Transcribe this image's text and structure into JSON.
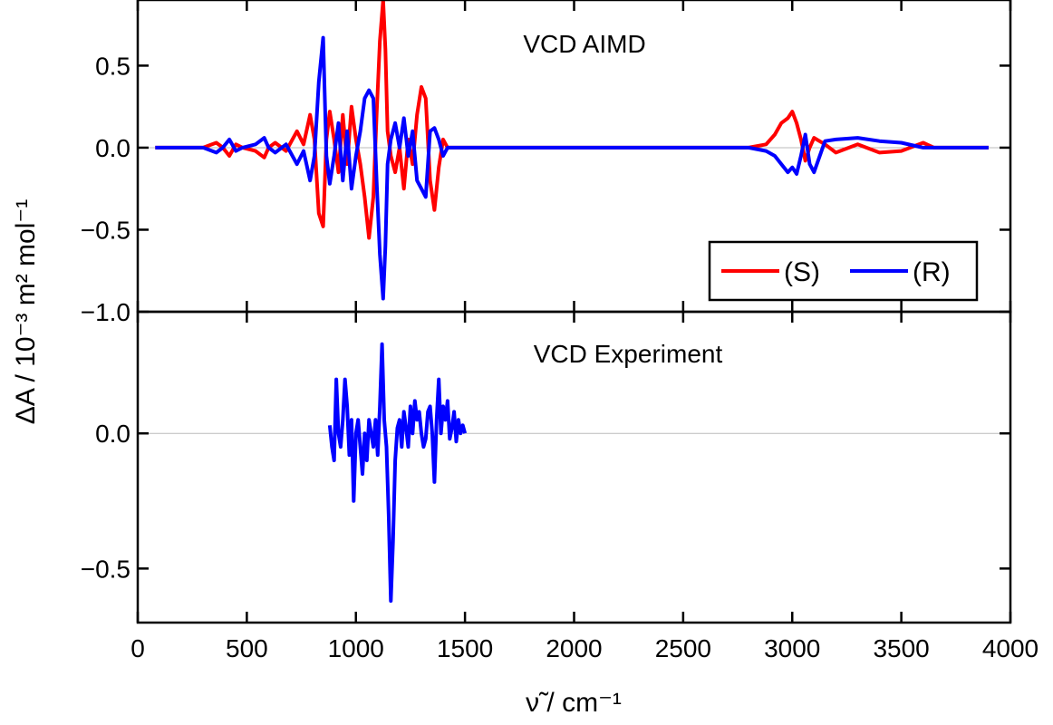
{
  "chart_data": [
    {
      "type": "line",
      "title": "VCD AIMD",
      "xlim": [
        0,
        4000
      ],
      "ylim": [
        -1.0,
        0.9
      ],
      "yticks": [
        -1.0,
        -0.5,
        0.0,
        0.5
      ],
      "ytick_labels": [
        "−1.0",
        "−0.5",
        "0.0",
        "0.5"
      ],
      "legend": {
        "position": "bottom-right",
        "entries": [
          "(S)",
          "(R)"
        ]
      },
      "series": [
        {
          "name": "(S)",
          "color": "#ff0000",
          "x": [
            80,
            300,
            360,
            390,
            420,
            450,
            480,
            540,
            580,
            600,
            630,
            680,
            730,
            760,
            790,
            810,
            830,
            850,
            865,
            880,
            900,
            920,
            940,
            960,
            980,
            1000,
            1020,
            1040,
            1060,
            1080,
            1095,
            1110,
            1125,
            1135,
            1145,
            1160,
            1180,
            1200,
            1220,
            1240,
            1260,
            1280,
            1300,
            1320,
            1340,
            1360,
            1380,
            1400,
            1420,
            1450,
            1480,
            1520,
            1700,
            2000,
            2500,
            2800,
            2880,
            2920,
            2950,
            2980,
            3000,
            3020,
            3040,
            3060,
            3080,
            3100,
            3150,
            3200,
            3300,
            3400,
            3500,
            3600,
            3650,
            3700,
            3900
          ],
          "y": [
            0.0,
            0.0,
            0.03,
            0.0,
            -0.05,
            0.02,
            0.0,
            -0.02,
            -0.06,
            0.0,
            0.03,
            -0.02,
            0.1,
            0.02,
            0.2,
            0.05,
            -0.4,
            -0.48,
            0.05,
            0.22,
            0.05,
            -0.15,
            0.2,
            -0.1,
            0.25,
            0.05,
            -0.1,
            -0.3,
            -0.55,
            -0.3,
            0.2,
            0.65,
            0.9,
            0.6,
            0.1,
            -0.05,
            -0.15,
            0.0,
            -0.25,
            0.05,
            -0.1,
            0.2,
            0.37,
            0.3,
            -0.2,
            -0.38,
            -0.12,
            0.05,
            0.0,
            0.0,
            0.0,
            0.0,
            0.0,
            0.0,
            0.0,
            0.0,
            0.02,
            0.08,
            0.15,
            0.18,
            0.22,
            0.15,
            0.05,
            -0.08,
            0.0,
            0.06,
            0.02,
            -0.03,
            0.02,
            -0.03,
            -0.02,
            0.03,
            0.0,
            0.0,
            0.0
          ]
        },
        {
          "name": "(R)",
          "color": "#0000ff",
          "x": [
            80,
            300,
            360,
            390,
            420,
            450,
            480,
            540,
            580,
            600,
            630,
            680,
            730,
            760,
            790,
            810,
            830,
            850,
            865,
            880,
            900,
            920,
            940,
            960,
            980,
            1000,
            1020,
            1040,
            1060,
            1080,
            1095,
            1110,
            1125,
            1135,
            1145,
            1160,
            1180,
            1200,
            1220,
            1240,
            1260,
            1280,
            1300,
            1320,
            1340,
            1360,
            1380,
            1400,
            1420,
            1450,
            1480,
            1520,
            1700,
            2000,
            2500,
            2800,
            2880,
            2920,
            2950,
            2980,
            3000,
            3020,
            3040,
            3060,
            3080,
            3100,
            3150,
            3200,
            3300,
            3400,
            3500,
            3600,
            3650,
            3700,
            3900
          ],
          "y": [
            0.0,
            0.0,
            -0.03,
            0.0,
            0.05,
            -0.02,
            0.0,
            0.02,
            0.06,
            0.0,
            -0.03,
            0.02,
            -0.1,
            -0.02,
            -0.2,
            -0.05,
            0.4,
            0.67,
            -0.05,
            -0.22,
            -0.05,
            0.15,
            -0.2,
            0.1,
            -0.25,
            -0.05,
            0.1,
            0.3,
            0.35,
            0.3,
            -0.2,
            -0.65,
            -0.92,
            -0.6,
            -0.1,
            0.05,
            0.15,
            0.0,
            0.18,
            -0.05,
            0.1,
            -0.2,
            -0.25,
            -0.3,
            0.1,
            0.12,
            0.05,
            -0.05,
            0.0,
            0.0,
            0.0,
            0.0,
            0.0,
            0.0,
            0.0,
            0.0,
            -0.02,
            -0.05,
            -0.1,
            -0.15,
            -0.12,
            -0.16,
            -0.05,
            0.08,
            -0.1,
            -0.15,
            0.04,
            0.05,
            0.06,
            0.04,
            0.03,
            0.0,
            0.0,
            0.0,
            0.0
          ]
        }
      ]
    },
    {
      "type": "line",
      "title": "VCD Experiment",
      "xlabel": "ν̃ / cm⁻¹",
      "ylabel": "ΔA / 10⁻³ m² mol⁻¹",
      "xlim": [
        0,
        4000
      ],
      "ylim": [
        -0.7,
        0.45
      ],
      "xticks": [
        0,
        500,
        1000,
        1500,
        2000,
        2500,
        3000,
        3500,
        4000
      ],
      "xtick_labels": [
        "0",
        "500",
        "1000",
        "1500",
        "2000",
        "2500",
        "3000",
        "3500",
        "4000"
      ],
      "yticks": [
        -0.5,
        0.0
      ],
      "ytick_labels": [
        "−0.5",
        "0.0"
      ],
      "series": [
        {
          "name": "",
          "color": "#0000ff",
          "x": [
            880,
            890,
            900,
            910,
            920,
            930,
            940,
            950,
            960,
            970,
            980,
            990,
            1000,
            1010,
            1020,
            1030,
            1040,
            1050,
            1060,
            1070,
            1080,
            1090,
            1100,
            1110,
            1120,
            1130,
            1140,
            1150,
            1160,
            1170,
            1180,
            1190,
            1200,
            1210,
            1220,
            1230,
            1240,
            1250,
            1260,
            1270,
            1280,
            1290,
            1300,
            1310,
            1320,
            1330,
            1340,
            1350,
            1360,
            1370,
            1380,
            1390,
            1400,
            1410,
            1420,
            1430,
            1440,
            1450,
            1460,
            1470,
            1480,
            1490,
            1500
          ],
          "y": [
            0.03,
            -0.05,
            -0.1,
            0.2,
            0.0,
            -0.05,
            0.05,
            0.2,
            0.1,
            -0.08,
            0.05,
            -0.25,
            0.0,
            0.05,
            -0.05,
            -0.15,
            0.0,
            -0.1,
            0.05,
            0.0,
            -0.05,
            0.05,
            -0.08,
            0.1,
            0.33,
            0.05,
            -0.05,
            -0.3,
            -0.62,
            -0.4,
            -0.1,
            0.02,
            0.05,
            -0.05,
            0.08,
            0.02,
            -0.05,
            0.1,
            0.0,
            0.12,
            0.05,
            0.08,
            0.0,
            -0.05,
            -0.02,
            0.08,
            0.1,
            0.0,
            -0.18,
            0.05,
            0.2,
            0.0,
            0.1,
            0.05,
            0.12,
            -0.02,
            0.02,
            0.08,
            -0.03,
            0.05,
            0.0,
            0.03,
            0.0
          ]
        }
      ]
    }
  ]
}
